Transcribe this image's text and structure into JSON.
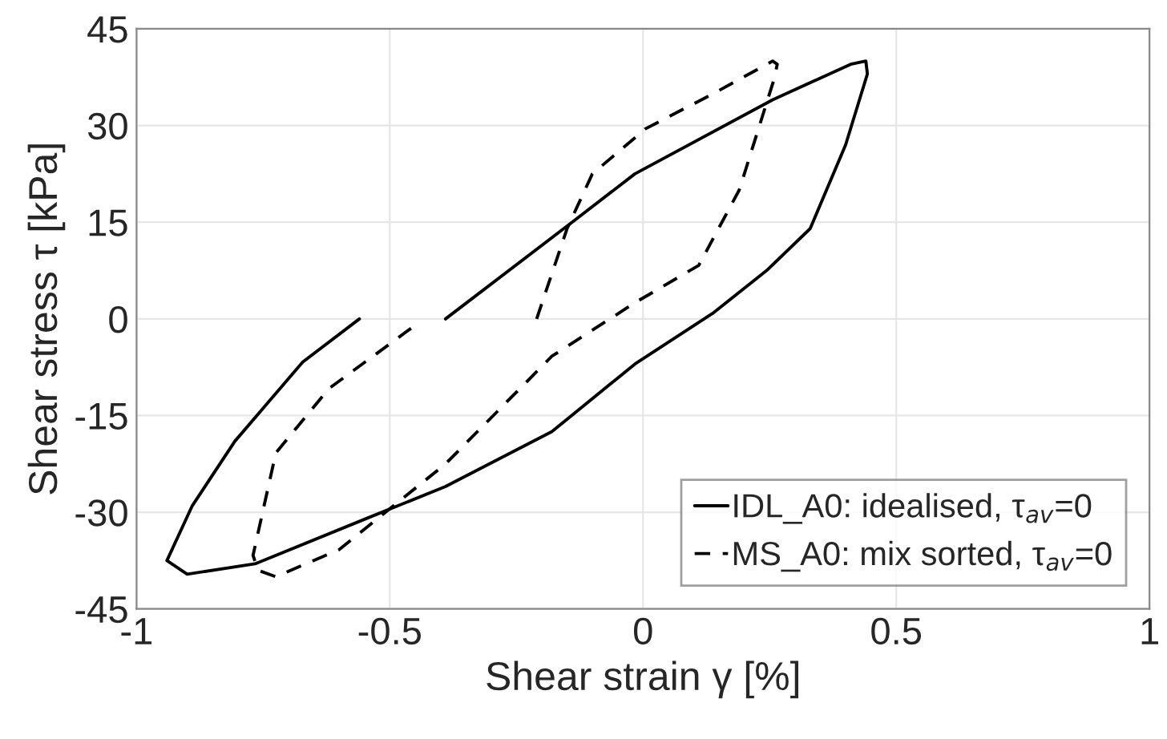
{
  "chart_data": {
    "type": "line",
    "xlabel": "Shear strain γ [%]",
    "ylabel": "Shear stress τ [kPa]",
    "xlim": [
      -1,
      1
    ],
    "xticks": [
      -1,
      -0.5,
      0,
      0.5,
      1
    ],
    "ylim": [
      -45,
      45
    ],
    "yticks": [
      -45,
      -30,
      -15,
      0,
      15,
      30,
      45
    ],
    "grid": true,
    "legend": "bottom right",
    "series": [
      {
        "name": "IDL_A0: idealised, τ$_{av}$=0",
        "color": "#000000",
        "line_style": "solid",
        "x": [
          -0.39,
          -0.14,
          -0.016,
          0.256,
          0.41,
          0.44,
          0.443,
          0.4,
          0.33,
          0.244,
          0.14,
          -0.016,
          -0.18,
          -0.39,
          -0.547,
          -0.766,
          -0.9,
          -0.94,
          -0.89,
          -0.806,
          -0.672,
          -0.56
        ],
        "values": [
          0,
          15,
          22.5,
          34,
          39.5,
          40,
          38,
          27,
          14,
          7.5,
          1,
          -7,
          -17.5,
          -26,
          -31,
          -38,
          -39.6,
          -37.5,
          -29,
          -19,
          -6.7,
          0
        ]
      },
      {
        "name": "MS_A0: mix sorted, τ$_{av}$=0",
        "color": "#000000",
        "line_style": "dashed",
        "x": [
          -0.21,
          -0.15,
          -0.1,
          0.005,
          0.14,
          0.256,
          0.265,
          0.26,
          0.19,
          0.11,
          -0.016,
          -0.18,
          -0.39,
          -0.6,
          -0.725,
          -0.76,
          -0.77,
          -0.725,
          -0.62,
          -0.45
        ],
        "values": [
          0,
          14,
          22.5,
          29.5,
          35,
          40,
          39.5,
          37.5,
          20,
          8.3,
          2.5,
          -5.8,
          -22.5,
          -35.8,
          -40,
          -39,
          -36.7,
          -20.8,
          -10.8,
          -1
        ]
      }
    ]
  }
}
